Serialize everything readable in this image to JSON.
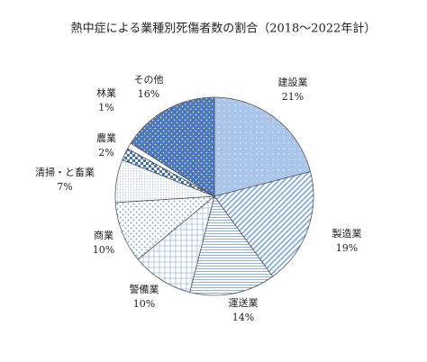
{
  "chart_data": {
    "type": "pie",
    "title": "熱中症による業種別死傷者数の割合（2018～2022年計）",
    "categories": [
      "建設業",
      "製造業",
      "運送業",
      "警備業",
      "商業",
      "清掃・と畜業",
      "農業",
      "林業",
      "その他"
    ],
    "values": [
      21,
      19,
      14,
      10,
      10,
      7,
      2,
      1,
      16
    ],
    "value_labels": [
      "21%",
      "19%",
      "14%",
      "10%",
      "10%",
      "7%",
      "2%",
      "1%",
      "16%"
    ],
    "colors": [
      "#a9c5ea",
      "#7fa6d8",
      "#8fb0dc",
      "#9bbbe2",
      "#7fa6d8",
      "#a9c5ea",
      "#3f6fb5",
      "#ffffff",
      "#4a78c0"
    ]
  }
}
